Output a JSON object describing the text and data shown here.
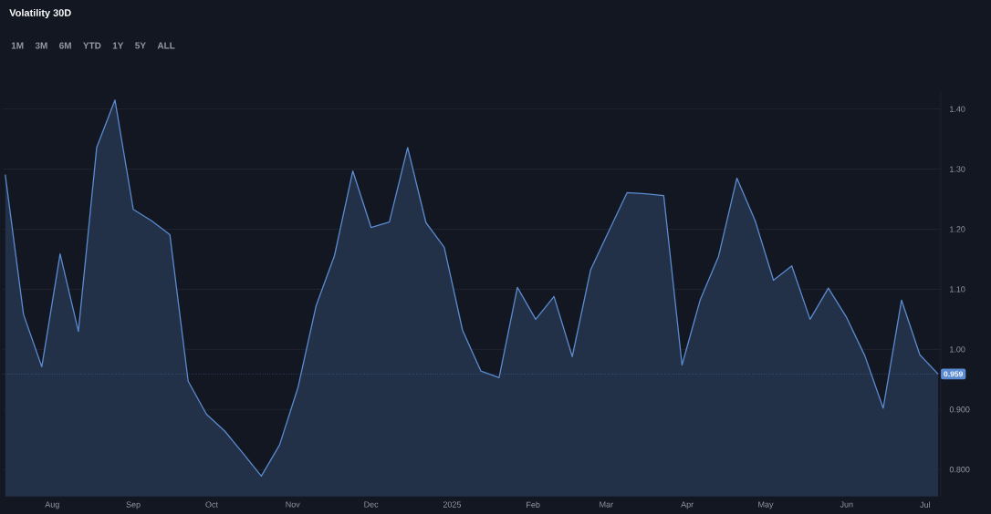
{
  "chart_data": {
    "type": "area",
    "title": "Volatility 30D",
    "annotations": [
      "1M",
      "3M",
      "6M",
      "YTD",
      "1Y",
      "5Y",
      "ALL"
    ],
    "x": [
      "2024-07-14",
      "2024-07-21",
      "2024-07-28",
      "2024-08-04",
      "2024-08-11",
      "2024-08-18",
      "2024-08-25",
      "2024-09-01",
      "2024-09-08",
      "2024-09-15",
      "2024-09-22",
      "2024-09-29",
      "2024-10-06",
      "2024-10-13",
      "2024-10-20",
      "2024-10-27",
      "2024-11-03",
      "2024-11-10",
      "2024-11-17",
      "2024-11-24",
      "2024-12-01",
      "2024-12-08",
      "2024-12-15",
      "2024-12-22",
      "2024-12-29",
      "2025-01-05",
      "2025-01-12",
      "2025-01-19",
      "2025-01-26",
      "2025-02-02",
      "2025-02-09",
      "2025-02-16",
      "2025-02-23",
      "2025-03-02",
      "2025-03-09",
      "2025-03-16",
      "2025-03-23",
      "2025-03-30",
      "2025-04-06",
      "2025-04-13",
      "2025-04-20",
      "2025-04-27",
      "2025-05-04",
      "2025-05-11",
      "2025-05-18",
      "2025-05-25",
      "2025-06-01",
      "2025-06-08",
      "2025-06-15",
      "2025-06-22",
      "2025-06-29",
      "2025-07-06"
    ],
    "series": [
      {
        "color": "#5b8bd0",
        "values": [
          1.291,
          1.058,
          0.971,
          1.159,
          1.03,
          1.336,
          1.415,
          1.233,
          1.214,
          1.191,
          0.947,
          0.892,
          0.864,
          0.827,
          0.789,
          0.841,
          0.936,
          1.073,
          1.156,
          1.297,
          1.203,
          1.212,
          1.336,
          1.211,
          1.17,
          1.032,
          0.964,
          0.953,
          1.103,
          1.05,
          1.088,
          0.988,
          1.132,
          1.197,
          1.261,
          1.259,
          1.256,
          0.974,
          1.083,
          1.155,
          1.285,
          1.214,
          1.115,
          1.139,
          1.05,
          1.102,
          1.053,
          0.989,
          0.902,
          1.082,
          0.991,
          0.959
        ]
      }
    ],
    "xlim": [
      "2024-07-13",
      "2025-07-07"
    ],
    "xticks": [
      {
        "value": "2024-08-01",
        "label": "Aug"
      },
      {
        "value": "2024-09-01",
        "label": "Sep"
      },
      {
        "value": "2024-10-01",
        "label": "Oct"
      },
      {
        "value": "2024-11-01",
        "label": "Nov"
      },
      {
        "value": "2024-12-01",
        "label": "Dec"
      },
      {
        "value": "2025-01-01",
        "label": "2025"
      },
      {
        "value": "2025-02-01",
        "label": "Feb"
      },
      {
        "value": "2025-03-01",
        "label": "Mar"
      },
      {
        "value": "2025-04-01",
        "label": "Apr"
      },
      {
        "value": "2025-05-01",
        "label": "May"
      },
      {
        "value": "2025-06-01",
        "label": "Jun"
      },
      {
        "value": "2025-07-01",
        "label": "Jul"
      }
    ],
    "ylim": [
      0.755,
      1.43
    ],
    "yticks": [
      {
        "value": 0.8,
        "label": "0.800"
      },
      {
        "value": 0.9,
        "label": "0.900"
      },
      {
        "value": 1.0,
        "label": "1.00"
      },
      {
        "value": 1.1,
        "label": "1.10"
      },
      {
        "value": 1.2,
        "label": "1.20"
      },
      {
        "value": 1.3,
        "label": "1.30"
      },
      {
        "value": 1.4,
        "label": "1.40"
      }
    ],
    "ref_lines": [
      {
        "axis": "y",
        "value": 0.959,
        "label": "0.959",
        "color": "#5b8bd0",
        "line_style": "dotted"
      }
    ],
    "grid": "y"
  }
}
